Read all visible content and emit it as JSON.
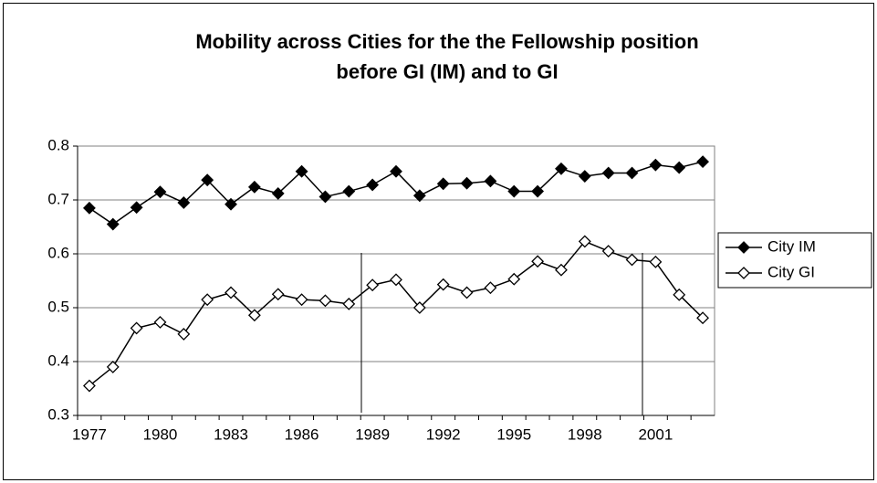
{
  "chart_data": {
    "type": "line",
    "title": [
      "Mobility across Cities for the the Fellowship position",
      "before GI (IM) and to GI"
    ],
    "categories": [
      "1977",
      null,
      null,
      "1980",
      null,
      null,
      "1983",
      null,
      null,
      "1986",
      null,
      null,
      "1989",
      null,
      null,
      "1992",
      null,
      null,
      "1995",
      null,
      null,
      "1998",
      null,
      null,
      "2001",
      null,
      null
    ],
    "series": [
      {
        "name": "City IM",
        "color": "#000000",
        "marker": "filled-diamond",
        "values": [
          0.685,
          0.655,
          0.686,
          0.715,
          0.695,
          0.737,
          0.692,
          0.724,
          0.712,
          0.753,
          0.706,
          0.716,
          0.728,
          0.753,
          0.708,
          0.73,
          0.731,
          0.735,
          0.716,
          0.716,
          0.758,
          0.744,
          0.75,
          0.75,
          0.765,
          0.76,
          0.771
        ]
      },
      {
        "name": "City GI",
        "color": "#000000",
        "marker": "open-diamond",
        "values": [
          0.355,
          0.39,
          0.462,
          0.473,
          0.451,
          0.515,
          0.528,
          0.486,
          0.525,
          0.515,
          0.513,
          0.507,
          0.542,
          0.552,
          0.5,
          0.543,
          0.528,
          0.537,
          0.553,
          0.586,
          0.57,
          0.623,
          0.605,
          0.589,
          0.585,
          0.524,
          0.481
        ]
      }
    ],
    "ylim": [
      0.3,
      0.8
    ],
    "yticks": [
      0.3,
      0.4,
      0.5,
      0.6,
      0.7,
      0.8
    ],
    "grid": true,
    "legend": "right"
  }
}
